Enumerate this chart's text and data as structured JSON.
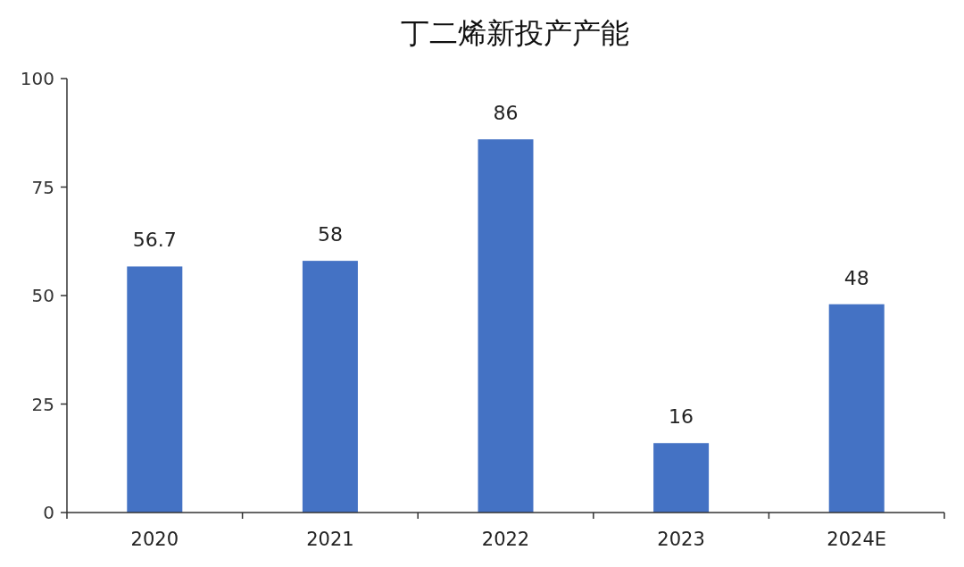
{
  "chart_data": {
    "type": "bar",
    "title": "丁二烯新投产产能",
    "categories": [
      "2020",
      "2021",
      "2022",
      "2023",
      "2024E"
    ],
    "values": [
      56.7,
      58,
      86,
      16,
      48
    ],
    "color": "#4472c4",
    "ylim": [
      0,
      100
    ],
    "yticks": [
      0,
      25,
      50,
      75,
      100
    ],
    "data_labels": true
  }
}
